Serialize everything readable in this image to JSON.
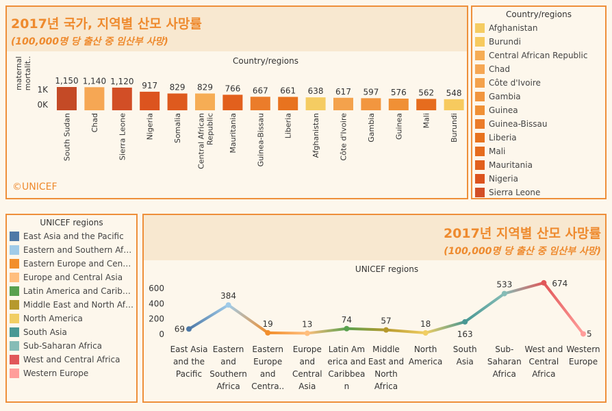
{
  "country_panel": {
    "title": "2017년 국가, 지역별 산모 사망률",
    "subtitle": "(100,000명 당 출산 중 임산부 사망)",
    "copyright": "©UNICEF"
  },
  "region_panel": {
    "title": "2017년 지역별 산모 사망률",
    "subtitle": "(100,000명 당 출산 중 임산부 사망)"
  },
  "country_legend": {
    "title": "Country/regions",
    "items": [
      {
        "label": "Afghanistan",
        "color": "#f5cc62"
      },
      {
        "label": "Burundi",
        "color": "#f7ca5e"
      },
      {
        "label": "Central African Republic",
        "color": "#f6ad55"
      },
      {
        "label": "Chad",
        "color": "#f6a754"
      },
      {
        "label": "Côte d'Ivoire",
        "color": "#f4a24c"
      },
      {
        "label": "Gambia",
        "color": "#f2963f"
      },
      {
        "label": "Guinea",
        "color": "#f09035"
      },
      {
        "label": "Guinea-Bissau",
        "color": "#eb7c2a"
      },
      {
        "label": "Liberia",
        "color": "#e8731f"
      },
      {
        "label": "Mali",
        "color": "#e66c1e"
      },
      {
        "label": "Mauritania",
        "color": "#e2601d"
      },
      {
        "label": "Nigeria",
        "color": "#dc541f"
      },
      {
        "label": "Sierra Leone",
        "color": "#d24e26"
      }
    ]
  },
  "region_legend": {
    "title": "UNICEF regions",
    "items": [
      {
        "label": "East Asia and the Pacific",
        "color": "#4e79a7"
      },
      {
        "label": "Eastern and Southern Africa",
        "color": "#a0cbe8"
      },
      {
        "label": "Eastern Europe and Central...",
        "color": "#f28e2b"
      },
      {
        "label": "Europe and Central Asia",
        "color": "#ffbe7d"
      },
      {
        "label": "Latin America and Caribbean",
        "color": "#59a14f"
      },
      {
        "label": "Middle East and North Africa",
        "color": "#b6992d"
      },
      {
        "label": "North America",
        "color": "#f1ce63"
      },
      {
        "label": "South Asia",
        "color": "#499894"
      },
      {
        "label": "Sub-Saharan Africa",
        "color": "#86bcb6"
      },
      {
        "label": "West and Central Africa",
        "color": "#e15759"
      },
      {
        "label": "Western Europe",
        "color": "#ff9d9a"
      }
    ]
  },
  "chart_data": [
    {
      "type": "bar",
      "title": "Country/regions",
      "ylabel": "maternal mortalit..",
      "ylim": [
        0,
        1150
      ],
      "yticks": [
        "1K",
        "0K"
      ],
      "categories": [
        "South Sudan",
        "Chad",
        "Sierra Leone",
        "Nigeria",
        "Somalia",
        "Central African Republic",
        "Mauritania",
        "Guinea-Bissau",
        "Liberia",
        "Afghanistan",
        "Côte d'Ivoire",
        "Gambia",
        "Guinea",
        "Mali",
        "Burundi"
      ],
      "values": [
        1150,
        1140,
        1120,
        917,
        829,
        829,
        766,
        667,
        661,
        638,
        617,
        597,
        576,
        562,
        548
      ],
      "value_labels": [
        "1,150",
        "1,140",
        "1,120",
        "917",
        "829",
        "829",
        "766",
        "667",
        "661",
        "638",
        "617",
        "597",
        "576",
        "562",
        "548"
      ],
      "colors": [
        "#c44a26",
        "#f6a754",
        "#d24e26",
        "#dc541f",
        "#de5a1e",
        "#f6ad55",
        "#e2601d",
        "#eb7c2a",
        "#e8731f",
        "#f5cc62",
        "#f4a24c",
        "#f2963f",
        "#f09035",
        "#e66c1e",
        "#f7ca5e"
      ]
    },
    {
      "type": "line",
      "title": "UNICEF regions",
      "ylim": [
        0,
        700
      ],
      "yticks": [
        0,
        200,
        400,
        600
      ],
      "categories": [
        "East Asia and the Pacific",
        "Eastern and Southern Africa",
        "Eastern Europe and Centra..",
        "Europe and Central Asia",
        "Latin America and Caribbean",
        "Middle East and North Africa",
        "North America",
        "South Asia",
        "Sub-Saharan Africa",
        "West and Central Africa",
        "Western Europe"
      ],
      "tick_labels": [
        [
          "East Asia",
          "and the",
          "Pacific"
        ],
        [
          "Eastern",
          "and",
          "Southern",
          "Africa"
        ],
        [
          "Eastern",
          "Europe",
          "and",
          "Centra.."
        ],
        [
          "Europe",
          "and",
          "Central",
          "Asia"
        ],
        [
          "Latin Am",
          "erica and",
          "Caribbea",
          "n"
        ],
        [
          "Middle",
          "East and",
          "North",
          "Africa"
        ],
        [
          "North",
          "America"
        ],
        [
          "South",
          "Asia"
        ],
        [
          "Sub-",
          "Saharan",
          "Africa"
        ],
        [
          "West and",
          "Central",
          "Africa"
        ],
        [
          "Western",
          "Europe"
        ]
      ],
      "values": [
        69,
        384,
        19,
        13,
        74,
        57,
        18,
        163,
        533,
        674,
        5
      ],
      "value_labels": [
        "69",
        "384",
        "19",
        "13",
        "74",
        "57",
        "18",
        "163",
        "533",
        "674",
        "5"
      ],
      "colors": [
        "#4e79a7",
        "#a0cbe8",
        "#f28e2b",
        "#ffbe7d",
        "#59a14f",
        "#b6992d",
        "#f1ce63",
        "#499894",
        "#86bcb6",
        "#e15759",
        "#ff9d9a"
      ]
    }
  ]
}
